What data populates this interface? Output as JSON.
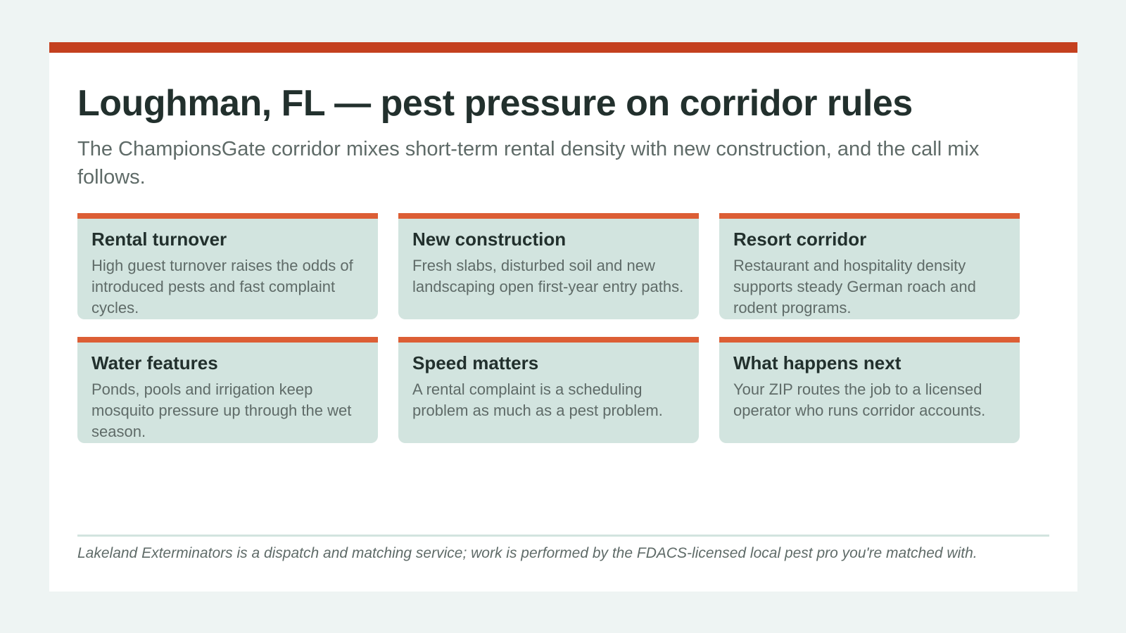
{
  "header": {
    "title": "Loughman, FL — pest pressure on corridor rules",
    "subtitle": "The ChampionsGate corridor mixes short-term rental density with new construction, and the call mix follows."
  },
  "cards": [
    {
      "title": "Rental turnover",
      "text": "High guest turnover raises the odds of introduced pests and fast complaint cycles."
    },
    {
      "title": "New construction",
      "text": "Fresh slabs, disturbed soil and new landscaping open first-year entry paths."
    },
    {
      "title": "Resort corridor",
      "text": "Restaurant and hospitality density supports steady German roach and rodent programs."
    },
    {
      "title": "Water features",
      "text": "Ponds, pools and irrigation keep mosquito pressure up through the wet season."
    },
    {
      "title": "Speed matters",
      "text": "A rental complaint is a scheduling problem as much as a pest problem."
    },
    {
      "title": "What happens next",
      "text": "Your ZIP routes the job to a licensed operator who runs corridor accounts."
    }
  ],
  "footer": {
    "disclaimer": "Lakeland Exterminators is a dispatch and matching service; work is performed by the FDACS-licensed local pest pro you're matched with."
  },
  "colors": {
    "accent_bar": "#c4401f",
    "card_accent": "#dc5e35",
    "card_background": "#d2e4df",
    "page_background": "#eef4f3",
    "heading_text": "#22302d",
    "body_text": "#5f6b68"
  }
}
